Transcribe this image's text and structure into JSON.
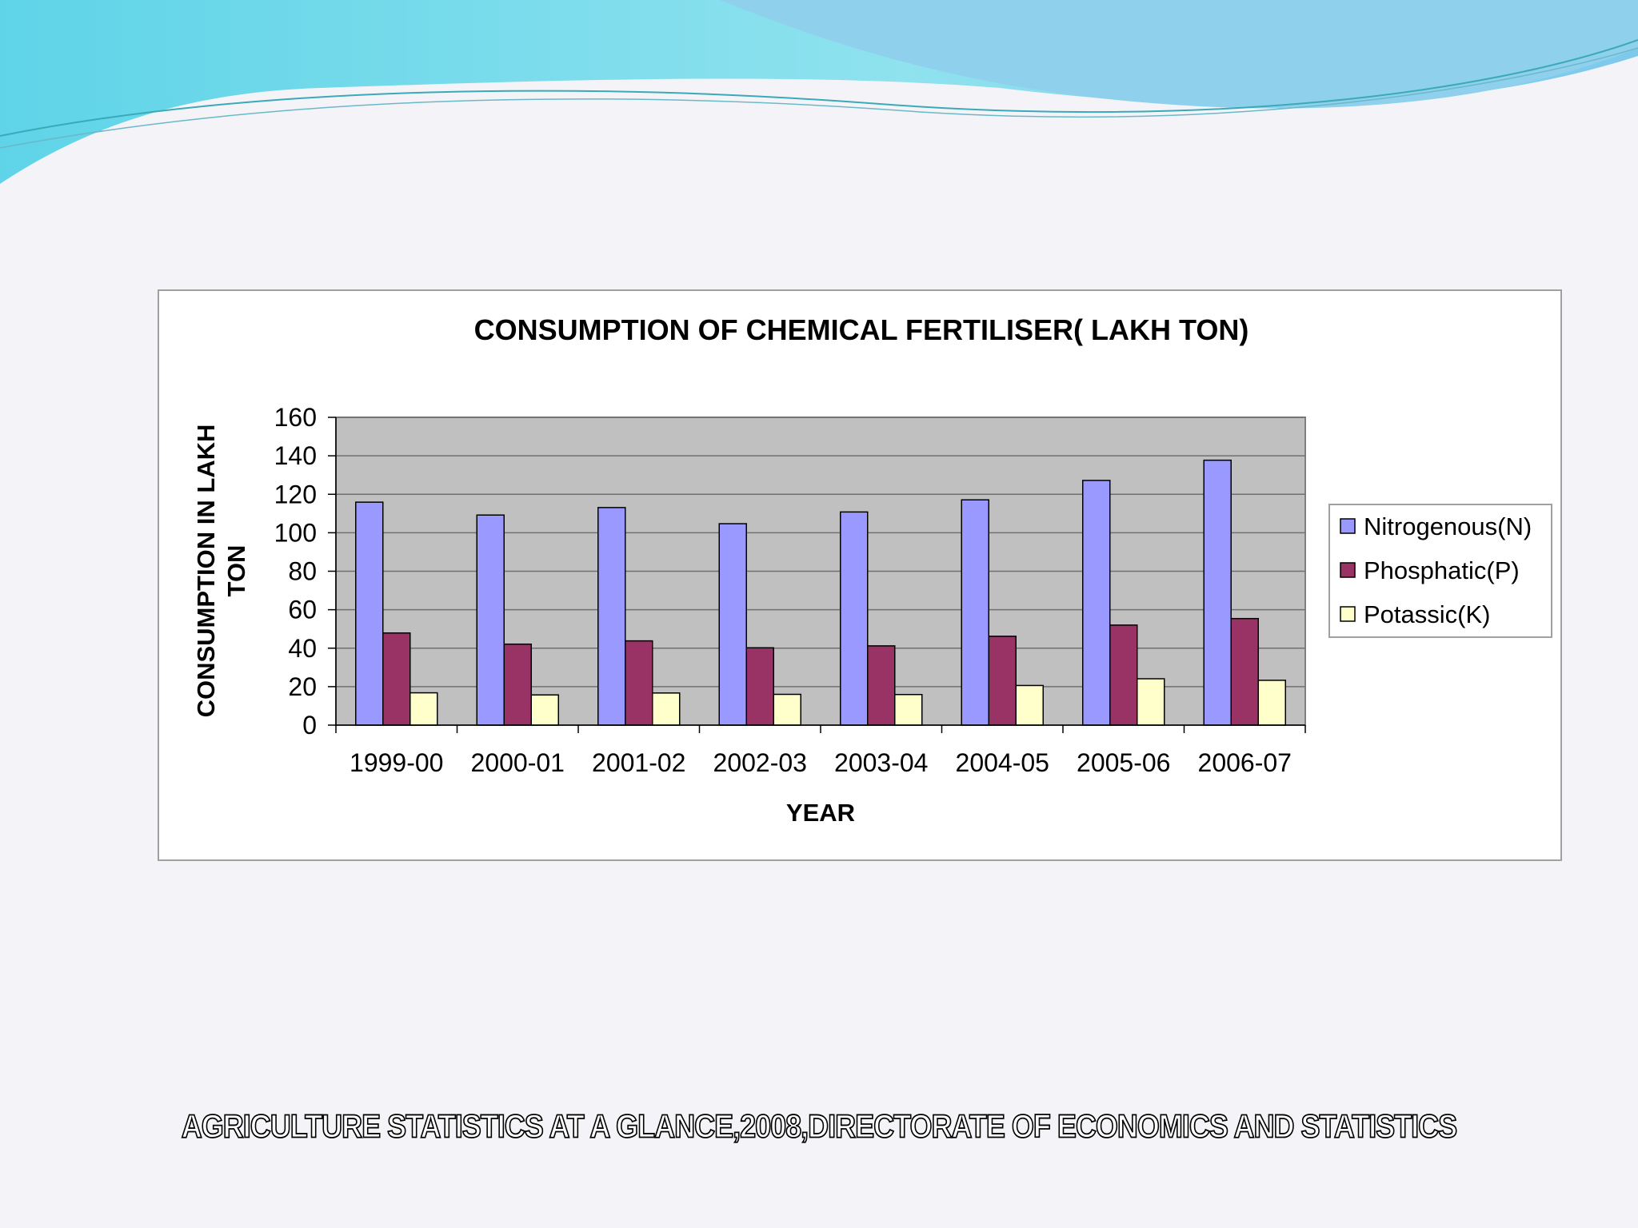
{
  "source": "AGRICULTURE STATISTICS AT A GLANCE,2008,DIRECTORATE OF ECONOMICS AND STATISTICS",
  "chart_data": {
    "type": "bar",
    "title": "CONSUMPTION OF CHEMICAL FERTILISER( LAKH TON)",
    "xlabel": "YEAR",
    "ylabel_lines": [
      "CONSUMPTION IN LAKH",
      "TON"
    ],
    "ylim": [
      0,
      160
    ],
    "yticks": [
      0,
      20,
      40,
      60,
      80,
      100,
      120,
      140,
      160
    ],
    "categories": [
      "1999-00",
      "2000-01",
      "2001-02",
      "2002-03",
      "2003-04",
      "2004-05",
      "2005-06",
      "2006-07"
    ],
    "series": [
      {
        "name": "Nitrogenous(N)",
        "color": "#9999ff",
        "values": [
          115.9,
          109.2,
          113.1,
          104.7,
          110.8,
          117.1,
          127.2,
          137.7
        ]
      },
      {
        "name": "Phosphatic(P)",
        "color": "#993366",
        "values": [
          47.9,
          42.1,
          43.8,
          40.2,
          41.2,
          46.2,
          52.0,
          55.4
        ]
      },
      {
        "name": "Potassic(K)",
        "color": "#ffffcc",
        "values": [
          16.8,
          15.7,
          16.7,
          16.0,
          15.9,
          20.6,
          24.1,
          23.3
        ]
      }
    ],
    "grid": true,
    "legend": "right",
    "plot_background": "#c0c0c0"
  }
}
